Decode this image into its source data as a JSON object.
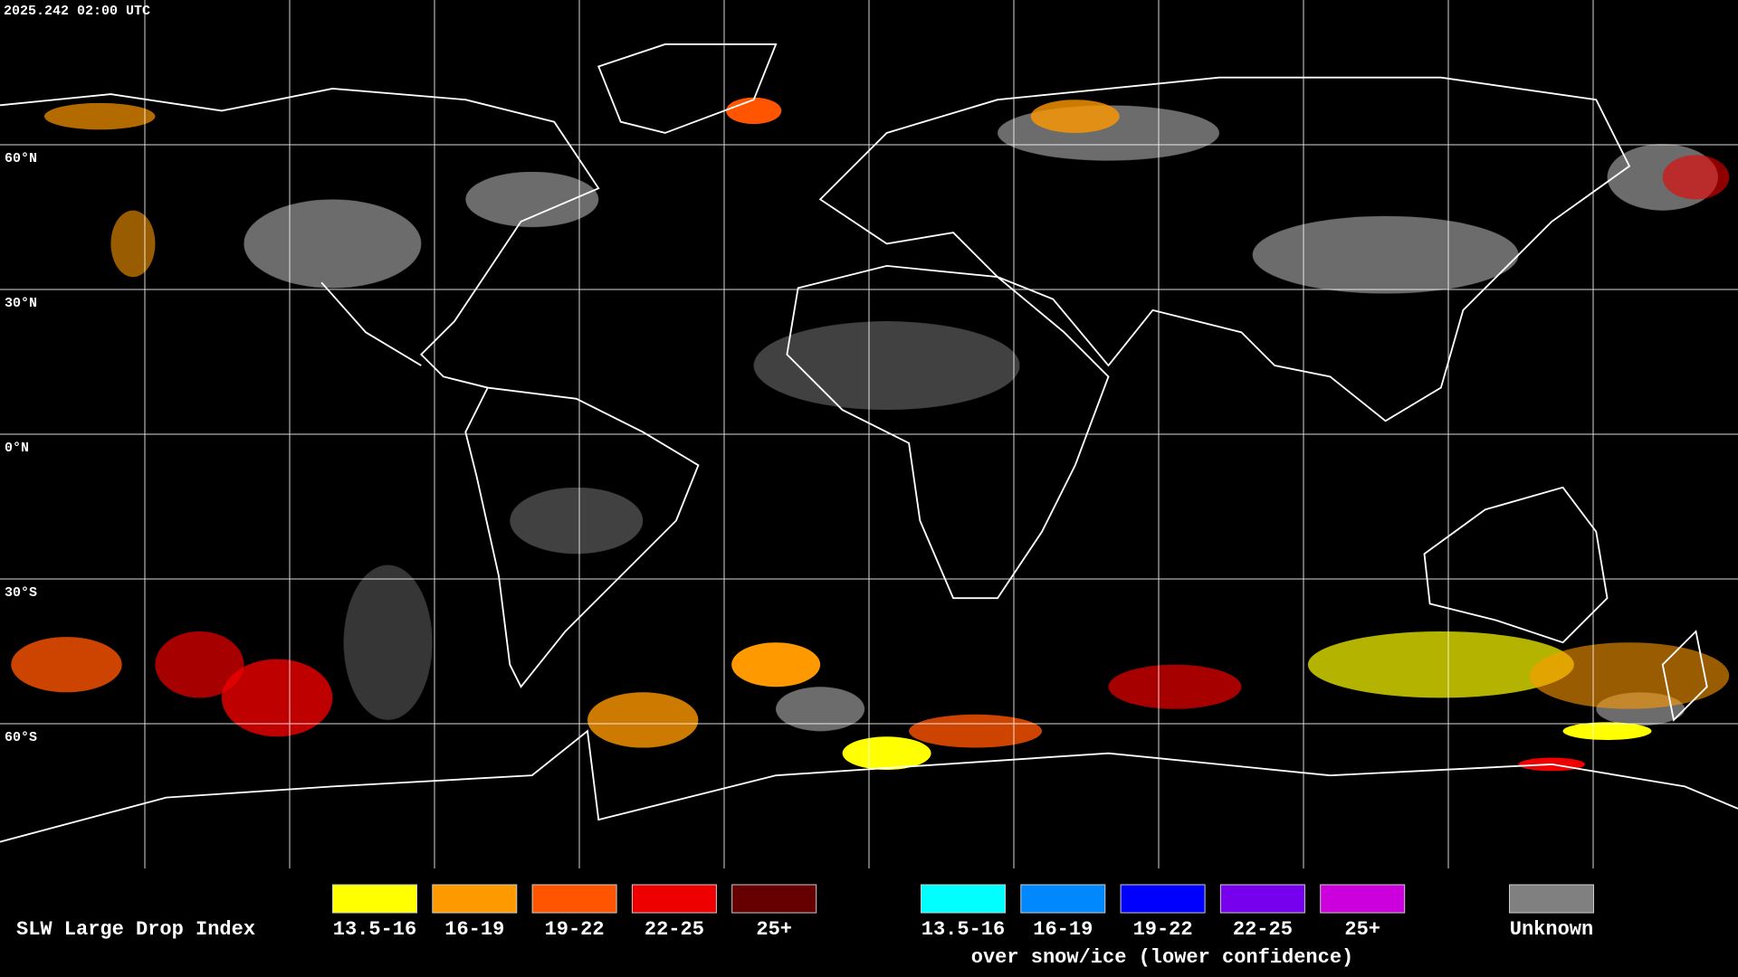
{
  "timestamp": "2025.242 02:00 UTC",
  "latitude_labels": [
    "60°N",
    "30°N",
    "0°N",
    "30°S",
    "60°S"
  ],
  "legend": {
    "title": "SLW Large Drop Index",
    "items": [
      {
        "label": "13.5-16",
        "color": "#ffff00"
      },
      {
        "label": "16-19",
        "color": "#ff9900"
      },
      {
        "label": "19-22",
        "color": "#ff5500"
      },
      {
        "label": "22-25",
        "color": "#ee0000"
      },
      {
        "label": "25+",
        "color": "#660000"
      }
    ],
    "snow_items": [
      {
        "label": "13.5-16",
        "color": "#00ffff"
      },
      {
        "label": "16-19",
        "color": "#0088ff"
      },
      {
        "label": "19-22",
        "color": "#0000ff"
      },
      {
        "label": "22-25",
        "color": "#7700ee"
      },
      {
        "label": "25+",
        "color": "#cc00dd"
      }
    ],
    "snow_caption": "over snow/ice (lower confidence)",
    "unknown": {
      "label": "Unknown",
      "color": "#808080"
    }
  }
}
